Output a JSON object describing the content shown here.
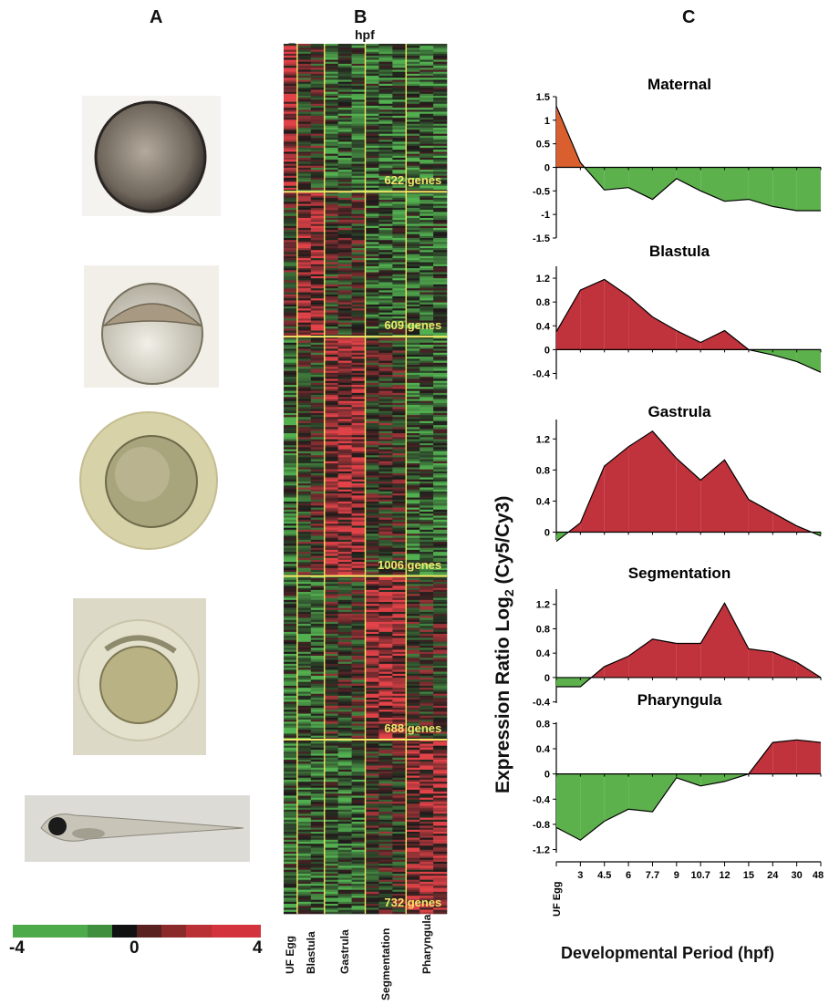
{
  "panels": {
    "a": "A",
    "b": "B",
    "c": "C"
  },
  "photos": [
    {
      "name": "unfertilized-egg-photo",
      "stage": "UF Egg"
    },
    {
      "name": "blastula-embryo-photo",
      "stage": "Blastula"
    },
    {
      "name": "gastrula-embryo-photo",
      "stage": "Gastrula"
    },
    {
      "name": "segmentation-embryo-photo",
      "stage": "Segmentation"
    },
    {
      "name": "pharyngula-larva-photo",
      "stage": "Pharyngula"
    }
  ],
  "color_scale": {
    "min_label": "-4",
    "mid_label": "0",
    "max_label": "4",
    "colors": [
      "#4caa4a",
      "#4caa4a",
      "#4caa4a",
      "#3f8f3f",
      "#111111",
      "#5a2121",
      "#8a2a2a",
      "#b93035",
      "#d2333c",
      "#d2333c"
    ]
  },
  "heatmap": {
    "hpf_label": "hpf",
    "columns": [
      "U F Egg",
      "3",
      "4.5",
      "6",
      "7.7",
      "9",
      "10.7",
      "12",
      "15",
      "24",
      "30",
      "48"
    ],
    "clusters": [
      {
        "label": "622 genes",
        "genes": 622,
        "pattern": "maternal"
      },
      {
        "label": "609 genes",
        "genes": 609,
        "pattern": "blastula"
      },
      {
        "label": "1006 genes",
        "genes": 1006,
        "pattern": "gastrula"
      },
      {
        "label": "688 genes",
        "genes": 688,
        "pattern": "segmentation"
      },
      {
        "label": "732 genes",
        "genes": 732,
        "pattern": "pharyngula"
      }
    ],
    "stage_groups": [
      "UF Egg",
      "Blastula",
      "Gastrula",
      "Segmentation",
      "Pharyngula"
    ],
    "colors": {
      "up": "#e0444c",
      "down": "#52b050",
      "neutral": "#1a1a1a",
      "divider": "#f4e867"
    }
  },
  "chart_data": [
    {
      "type": "area",
      "title": "Maternal",
      "categories": [
        "UF Egg",
        "3",
        "4.5",
        "6",
        "7.7",
        "9",
        "10.7",
        "12",
        "15",
        "24",
        "30",
        "48"
      ],
      "values": [
        1.3,
        0.1,
        -0.48,
        -0.43,
        -0.68,
        -0.24,
        -0.5,
        -0.72,
        -0.68,
        -0.83,
        -0.92,
        -0.92
      ],
      "yticks": [
        "1.5",
        "1",
        "0.5",
        "0",
        "-0.5",
        "-1",
        "-1.5"
      ],
      "ylim": [
        -1.5,
        1.5
      ],
      "colors": {
        "positive": "#d9602e",
        "negative": "#5db14c"
      }
    },
    {
      "type": "area",
      "title": "Blastula",
      "categories": [
        "UF Egg",
        "3",
        "4.5",
        "6",
        "7.7",
        "9",
        "10.7",
        "12",
        "15",
        "24",
        "30",
        "48"
      ],
      "values": [
        0.3,
        1.0,
        1.18,
        0.9,
        0.55,
        0.32,
        0.12,
        0.32,
        0.0,
        -0.09,
        -0.2,
        -0.38
      ],
      "yticks": [
        "1.2",
        "0.8",
        "0.4",
        "0",
        "-0.4"
      ],
      "ylim": [
        -0.5,
        1.4
      ],
      "colors": {
        "positive": "#c0323c",
        "negative": "#5db14c"
      }
    },
    {
      "type": "area",
      "title": "Gastrula",
      "categories": [
        "UF Egg",
        "3",
        "4.5",
        "6",
        "7.7",
        "9",
        "10.7",
        "12",
        "15",
        "24",
        "30",
        "48"
      ],
      "values": [
        -0.12,
        0.12,
        0.85,
        1.1,
        1.3,
        0.95,
        0.67,
        0.93,
        0.42,
        0.25,
        0.08,
        -0.05
      ],
      "yticks": [
        "1.2",
        "0.8",
        "0.4",
        "0"
      ],
      "ylim": [
        -0.1,
        1.45
      ],
      "colors": {
        "positive": "#c0323c",
        "negative": "#5db14c"
      }
    },
    {
      "type": "area",
      "title": "Segmentation",
      "categories": [
        "UF Egg",
        "3",
        "4.5",
        "6",
        "7.7",
        "9",
        "10.7",
        "12",
        "15",
        "24",
        "30",
        "48"
      ],
      "values": [
        -0.15,
        -0.15,
        0.18,
        0.35,
        0.63,
        0.56,
        0.56,
        1.22,
        0.47,
        0.42,
        0.25,
        0.0
      ],
      "yticks": [
        "1.2",
        "0.8",
        "0.4",
        "0",
        "-0.4"
      ],
      "ylim": [
        -0.42,
        1.45
      ],
      "colors": {
        "positive": "#c0323c",
        "negative": "#5db14c"
      }
    },
    {
      "type": "area",
      "title": "Pharyngula",
      "categories": [
        "UF Egg",
        "3",
        "4.5",
        "6",
        "7.7",
        "9",
        "10.7",
        "12",
        "15",
        "24",
        "30",
        "48"
      ],
      "values": [
        -0.85,
        -1.05,
        -0.75,
        -0.56,
        -0.6,
        -0.06,
        -0.19,
        -0.12,
        0.0,
        0.5,
        0.54,
        0.5
      ],
      "yticks": [
        "0.8",
        "0.4",
        "0",
        "-0.4",
        "-0.8",
        "-1.2"
      ],
      "ylim": [
        -1.25,
        0.82
      ],
      "colors": {
        "positive": "#c0323c",
        "negative": "#5db14c"
      }
    }
  ],
  "axes": {
    "ytitle_main": "Expression Ratio Log",
    "ytitle_sub": "2",
    "ytitle_tail": " (Cy5/Cy3)",
    "xtitle": "Developmental Period (hpf)"
  }
}
